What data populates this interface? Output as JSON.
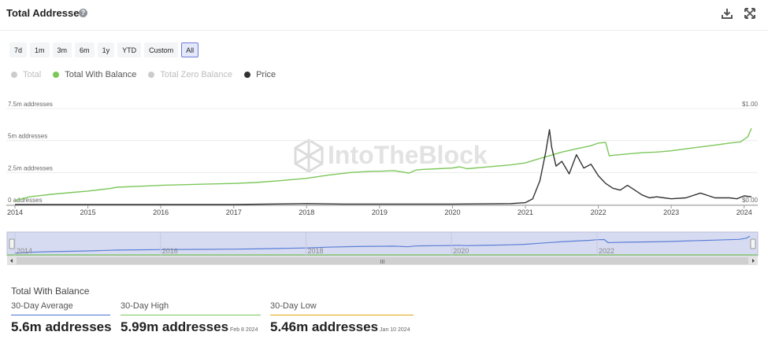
{
  "header": {
    "title": "Total Addresses",
    "help": "?"
  },
  "ranges": [
    "7d",
    "1m",
    "3m",
    "6m",
    "1y",
    "YTD",
    "Custom",
    "All"
  ],
  "active_range": "All",
  "legend": [
    {
      "label": "Total",
      "color": "#cccccc",
      "active": false
    },
    {
      "label": "Total With Balance",
      "color": "#7cc75a",
      "active": true
    },
    {
      "label": "Total Zero Balance",
      "color": "#cccccc",
      "active": false
    },
    {
      "label": "Price",
      "color": "#333333",
      "active": true
    }
  ],
  "watermark": "IntoTheBlock",
  "chart_data": {
    "type": "line",
    "y_axis_left": {
      "ticks": [
        "0 addresses",
        "2.5m addresses",
        "5m addresses",
        "7.5m addresses"
      ],
      "values": [
        0,
        2.5,
        5,
        7.5
      ],
      "range": [
        0,
        7.5
      ]
    },
    "y_axis_right": {
      "ticks": [
        "$0.00",
        "$1.00"
      ],
      "values": [
        0,
        1
      ],
      "range": [
        0,
        1
      ]
    },
    "x_axis": {
      "ticks": [
        "2014",
        "2015",
        "2016",
        "2017",
        "2018",
        "2019",
        "2020",
        "2021",
        "2022",
        "2023",
        "2024"
      ],
      "range": [
        2014,
        2024.1
      ]
    },
    "series": [
      {
        "name": "Total With Balance",
        "color": "#7cc75a",
        "axis": "left",
        "x": [
          2014.0,
          2014.2,
          2014.5,
          2014.8,
          2015.0,
          2015.3,
          2015.4,
          2015.8,
          2016.0,
          2016.5,
          2017.0,
          2017.3,
          2017.6,
          2018.0,
          2018.3,
          2018.6,
          2018.9,
          2019.0,
          2019.2,
          2019.4,
          2019.5,
          2019.6,
          2019.8,
          2020.0,
          2020.1,
          2020.2,
          2020.4,
          2020.6,
          2020.8,
          2021.0,
          2021.2,
          2021.35,
          2021.5,
          2021.7,
          2021.9,
          2022.0,
          2022.1,
          2022.15,
          2022.2,
          2022.4,
          2022.6,
          2022.8,
          2023.0,
          2023.2,
          2023.4,
          2023.6,
          2023.8,
          2023.95,
          2024.05,
          2024.1
        ],
        "values": [
          0.3,
          0.6,
          0.8,
          0.95,
          1.05,
          1.25,
          1.35,
          1.45,
          1.5,
          1.58,
          1.65,
          1.72,
          1.85,
          2.05,
          2.3,
          2.5,
          2.6,
          2.6,
          2.65,
          2.45,
          2.7,
          2.75,
          2.8,
          2.85,
          2.95,
          2.8,
          2.9,
          3.0,
          3.1,
          3.25,
          3.6,
          3.85,
          4.1,
          4.35,
          4.6,
          4.8,
          4.85,
          3.8,
          3.85,
          3.95,
          4.05,
          4.1,
          4.2,
          4.35,
          4.5,
          4.65,
          4.8,
          4.9,
          5.3,
          5.95
        ]
      },
      {
        "name": "Price",
        "color": "#333333",
        "axis": "right",
        "x": [
          2014.0,
          2017.0,
          2018.0,
          2018.5,
          2019.0,
          2020.0,
          2020.8,
          2021.0,
          2021.1,
          2021.2,
          2021.28,
          2021.33,
          2021.36,
          2021.42,
          2021.5,
          2021.6,
          2021.7,
          2021.8,
          2021.9,
          2022.0,
          2022.1,
          2022.2,
          2022.3,
          2022.4,
          2022.5,
          2022.6,
          2022.7,
          2022.8,
          2022.9,
          2023.0,
          2023.2,
          2023.4,
          2023.6,
          2023.8,
          2023.9,
          2024.0,
          2024.1
        ],
        "values": [
          0,
          0,
          0.01,
          0.005,
          0.005,
          0.005,
          0.01,
          0.02,
          0.06,
          0.25,
          0.55,
          0.78,
          0.6,
          0.4,
          0.45,
          0.32,
          0.52,
          0.38,
          0.42,
          0.3,
          0.22,
          0.17,
          0.15,
          0.2,
          0.15,
          0.1,
          0.07,
          0.08,
          0.07,
          0.06,
          0.07,
          0.12,
          0.07,
          0.07,
          0.06,
          0.09,
          0.08
        ]
      }
    ],
    "navigator": {
      "ticks": [
        "2014",
        "2016",
        "2018",
        "2020",
        "2022"
      ],
      "values": [
        2014,
        2016,
        2018,
        2020,
        2022
      ],
      "handle": "III"
    }
  },
  "stats": {
    "title": "Total With Balance",
    "items": [
      {
        "label": "30-Day Average",
        "value": "5.6m addresses",
        "date": "",
        "color": "#4a72d6"
      },
      {
        "label": "30-Day High",
        "value": "5.99m addresses",
        "date": "Feb 8 2024",
        "color": "#7cc75a"
      },
      {
        "label": "30-Day Low",
        "value": "5.46m addresses",
        "date": "Jan 10 2024",
        "color": "#e0a61b"
      }
    ]
  }
}
